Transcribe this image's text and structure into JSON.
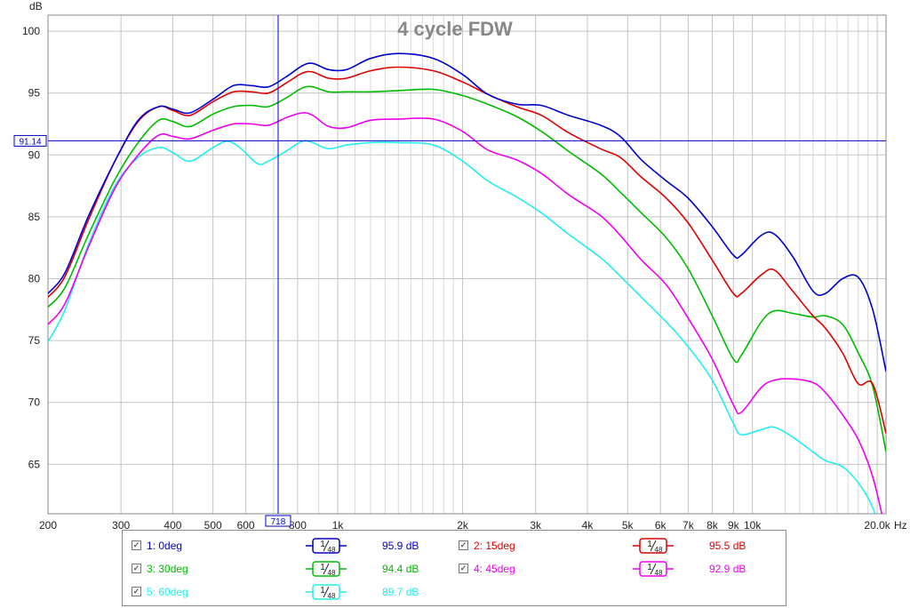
{
  "chart_data": {
    "type": "line",
    "title": "4 cycle FDW",
    "ylabel": "dB",
    "xlabel": "Hz",
    "x_scale": "log",
    "xlim": [
      200,
      21000
    ],
    "ylim": [
      61,
      101.3
    ],
    "x_ticks": [
      {
        "v": 200,
        "label": "200"
      },
      {
        "v": 300,
        "label": "300"
      },
      {
        "v": 400,
        "label": "400"
      },
      {
        "v": 500,
        "label": "500"
      },
      {
        "v": 600,
        "label": "600"
      },
      {
        "v": 800,
        "label": "800"
      },
      {
        "v": 1000,
        "label": "1k"
      },
      {
        "v": 2000,
        "label": "2k"
      },
      {
        "v": 3000,
        "label": "3k"
      },
      {
        "v": 4000,
        "label": "4k"
      },
      {
        "v": 5000,
        "label": "5k"
      },
      {
        "v": 6000,
        "label": "6k"
      },
      {
        "v": 7000,
        "label": "7k"
      },
      {
        "v": 8000,
        "label": "8k"
      },
      {
        "v": 9000,
        "label": "9k"
      },
      {
        "v": 10000,
        "label": "10k"
      },
      {
        "v": 20000,
        "label": "20.0k"
      }
    ],
    "x_minor": [
      700,
      900,
      1100,
      1200,
      1300,
      1400,
      1500,
      1600,
      1700,
      1800,
      1900,
      12000,
      13000,
      14000,
      15000,
      16000,
      17000,
      18000,
      19000
    ],
    "y_ticks": [
      65,
      70,
      75,
      80,
      85,
      90,
      95,
      100
    ],
    "grid": true,
    "cursor": {
      "x": 718,
      "x_label": "718",
      "y": 91.14,
      "y_label": "91.14"
    },
    "series": [
      {
        "name": "1: 0deg",
        "color": "#0000cc",
        "smoothing": "1/48",
        "level": "95.9 dB",
        "points": [
          [
            200,
            78.8
          ],
          [
            220,
            80.5
          ],
          [
            250,
            85
          ],
          [
            290,
            89.5
          ],
          [
            330,
            92.8
          ],
          [
            370,
            93.9
          ],
          [
            400,
            93.7
          ],
          [
            440,
            93.4
          ],
          [
            500,
            94.5
          ],
          [
            560,
            95.6
          ],
          [
            620,
            95.6
          ],
          [
            680,
            95.5
          ],
          [
            750,
            96.3
          ],
          [
            820,
            97.2
          ],
          [
            870,
            97.4
          ],
          [
            950,
            96.9
          ],
          [
            1050,
            96.9
          ],
          [
            1200,
            97.8
          ],
          [
            1400,
            98.2
          ],
          [
            1700,
            97.8
          ],
          [
            2000,
            96.5
          ],
          [
            2300,
            94.9
          ],
          [
            2700,
            94.1
          ],
          [
            3100,
            94
          ],
          [
            3600,
            93.2
          ],
          [
            4300,
            92.4
          ],
          [
            4800,
            91.5
          ],
          [
            5400,
            89.6
          ],
          [
            6200,
            87.9
          ],
          [
            7000,
            86.5
          ],
          [
            8000,
            84.2
          ],
          [
            9000,
            81.9
          ],
          [
            9400,
            81.9
          ],
          [
            10500,
            83.5
          ],
          [
            11300,
            83.6
          ],
          [
            12500,
            81.8
          ],
          [
            14000,
            79
          ],
          [
            15000,
            78.8
          ],
          [
            16500,
            80
          ],
          [
            18000,
            80.1
          ],
          [
            19500,
            77.5
          ],
          [
            21000,
            72.5
          ]
        ]
      },
      {
        "name": "2: 15deg",
        "color": "#dd0000",
        "smoothing": "1/48",
        "level": "95.5 dB",
        "points": [
          [
            200,
            78.5
          ],
          [
            220,
            80.2
          ],
          [
            250,
            84.7
          ],
          [
            290,
            89.5
          ],
          [
            330,
            92.7
          ],
          [
            370,
            93.9
          ],
          [
            400,
            93.6
          ],
          [
            440,
            93.2
          ],
          [
            500,
            94.3
          ],
          [
            560,
            95.1
          ],
          [
            620,
            95.1
          ],
          [
            680,
            95
          ],
          [
            750,
            95.8
          ],
          [
            820,
            96.6
          ],
          [
            870,
            96.7
          ],
          [
            950,
            96.2
          ],
          [
            1050,
            96.2
          ],
          [
            1200,
            96.8
          ],
          [
            1400,
            97.1
          ],
          [
            1700,
            96.8
          ],
          [
            2000,
            95.9
          ],
          [
            2300,
            94.9
          ],
          [
            2700,
            93.9
          ],
          [
            3100,
            93.2
          ],
          [
            3600,
            91.8
          ],
          [
            4300,
            90.5
          ],
          [
            4800,
            89.8
          ],
          [
            5400,
            88.2
          ],
          [
            6200,
            86.5
          ],
          [
            7000,
            84.5
          ],
          [
            8000,
            81.5
          ],
          [
            9000,
            78.8
          ],
          [
            9400,
            78.8
          ],
          [
            10500,
            80.3
          ],
          [
            11300,
            80.7
          ],
          [
            12500,
            79
          ],
          [
            14000,
            77
          ],
          [
            15000,
            76
          ],
          [
            16500,
            74
          ],
          [
            18000,
            71.5
          ],
          [
            19500,
            71.5
          ],
          [
            21000,
            67.5
          ]
        ]
      },
      {
        "name": "3: 30deg",
        "color": "#00bb00",
        "smoothing": "1/48",
        "level": "94.4 dB",
        "points": [
          [
            200,
            77.7
          ],
          [
            220,
            79.3
          ],
          [
            250,
            83.5
          ],
          [
            290,
            88
          ],
          [
            330,
            91
          ],
          [
            370,
            92.8
          ],
          [
            400,
            92.7
          ],
          [
            440,
            92.3
          ],
          [
            500,
            93.3
          ],
          [
            560,
            93.9
          ],
          [
            620,
            94
          ],
          [
            680,
            93.9
          ],
          [
            750,
            94.6
          ],
          [
            820,
            95.4
          ],
          [
            870,
            95.5
          ],
          [
            950,
            95.1
          ],
          [
            1050,
            95.1
          ],
          [
            1200,
            95.1
          ],
          [
            1400,
            95.2
          ],
          [
            1700,
            95.3
          ],
          [
            2000,
            94.8
          ],
          [
            2300,
            94.1
          ],
          [
            2700,
            93.1
          ],
          [
            3100,
            91.9
          ],
          [
            3600,
            90.3
          ],
          [
            4300,
            88.5
          ],
          [
            4800,
            87
          ],
          [
            5400,
            85.3
          ],
          [
            6200,
            83.3
          ],
          [
            7000,
            80.8
          ],
          [
            8000,
            77
          ],
          [
            9000,
            73.5
          ],
          [
            9400,
            73.8
          ],
          [
            10500,
            76.5
          ],
          [
            11300,
            77.4
          ],
          [
            12500,
            77.2
          ],
          [
            14000,
            76.9
          ],
          [
            15000,
            77
          ],
          [
            16500,
            76.3
          ],
          [
            18000,
            74
          ],
          [
            19500,
            71.3
          ],
          [
            21000,
            66
          ]
        ]
      },
      {
        "name": "4: 45deg",
        "color": "#ee00ee",
        "smoothing": "1/48",
        "level": "92.9 dB",
        "points": [
          [
            200,
            76.3
          ],
          [
            220,
            78
          ],
          [
            250,
            82.5
          ],
          [
            290,
            87.3
          ],
          [
            330,
            90
          ],
          [
            370,
            91.6
          ],
          [
            400,
            91.5
          ],
          [
            440,
            91.3
          ],
          [
            500,
            92
          ],
          [
            560,
            92.5
          ],
          [
            620,
            92.5
          ],
          [
            680,
            92.4
          ],
          [
            750,
            93
          ],
          [
            820,
            93.4
          ],
          [
            870,
            93.2
          ],
          [
            950,
            92.3
          ],
          [
            1050,
            92.2
          ],
          [
            1200,
            92.8
          ],
          [
            1400,
            92.9
          ],
          [
            1700,
            92.9
          ],
          [
            2000,
            91.9
          ],
          [
            2300,
            90.4
          ],
          [
            2700,
            89.6
          ],
          [
            3100,
            88.5
          ],
          [
            3600,
            86.8
          ],
          [
            4300,
            85.1
          ],
          [
            4800,
            83.5
          ],
          [
            5400,
            81.5
          ],
          [
            6200,
            79.5
          ],
          [
            7000,
            76.8
          ],
          [
            8000,
            73.5
          ],
          [
            9000,
            69.8
          ],
          [
            9400,
            69.2
          ],
          [
            10500,
            71.2
          ],
          [
            11300,
            71.8
          ],
          [
            12500,
            71.9
          ],
          [
            14000,
            71.6
          ],
          [
            15000,
            70.8
          ],
          [
            16500,
            69
          ],
          [
            18000,
            67
          ],
          [
            19500,
            64
          ],
          [
            21000,
            59.5
          ]
        ]
      },
      {
        "name": "5: 60deg",
        "color": "#22eeee",
        "smoothing": "1/48",
        "level": "89.7 dB",
        "points": [
          [
            200,
            74.9
          ],
          [
            220,
            77.5
          ],
          [
            250,
            82.7
          ],
          [
            290,
            87.5
          ],
          [
            330,
            89.8
          ],
          [
            370,
            90.6
          ],
          [
            400,
            90.2
          ],
          [
            440,
            89.5
          ],
          [
            500,
            90.6
          ],
          [
            540,
            91.1
          ],
          [
            580,
            90.6
          ],
          [
            640,
            89.3
          ],
          [
            680,
            89.5
          ],
          [
            750,
            90.3
          ],
          [
            820,
            91.1
          ],
          [
            870,
            91
          ],
          [
            950,
            90.5
          ],
          [
            1050,
            90.8
          ],
          [
            1200,
            91
          ],
          [
            1400,
            91
          ],
          [
            1700,
            90.8
          ],
          [
            2000,
            89.5
          ],
          [
            2300,
            87.9
          ],
          [
            2700,
            86.6
          ],
          [
            3100,
            85.3
          ],
          [
            3600,
            83.6
          ],
          [
            4300,
            81.7
          ],
          [
            4800,
            80.2
          ],
          [
            5400,
            78.5
          ],
          [
            6200,
            76.5
          ],
          [
            7000,
            74.5
          ],
          [
            8000,
            71.8
          ],
          [
            9000,
            68.3
          ],
          [
            9400,
            67.4
          ],
          [
            10500,
            67.8
          ],
          [
            11300,
            68
          ],
          [
            12500,
            67.2
          ],
          [
            14000,
            66
          ],
          [
            15000,
            65.3
          ],
          [
            16500,
            64.8
          ],
          [
            18000,
            63.5
          ],
          [
            19500,
            61.5
          ],
          [
            21000,
            58
          ]
        ]
      }
    ]
  }
}
